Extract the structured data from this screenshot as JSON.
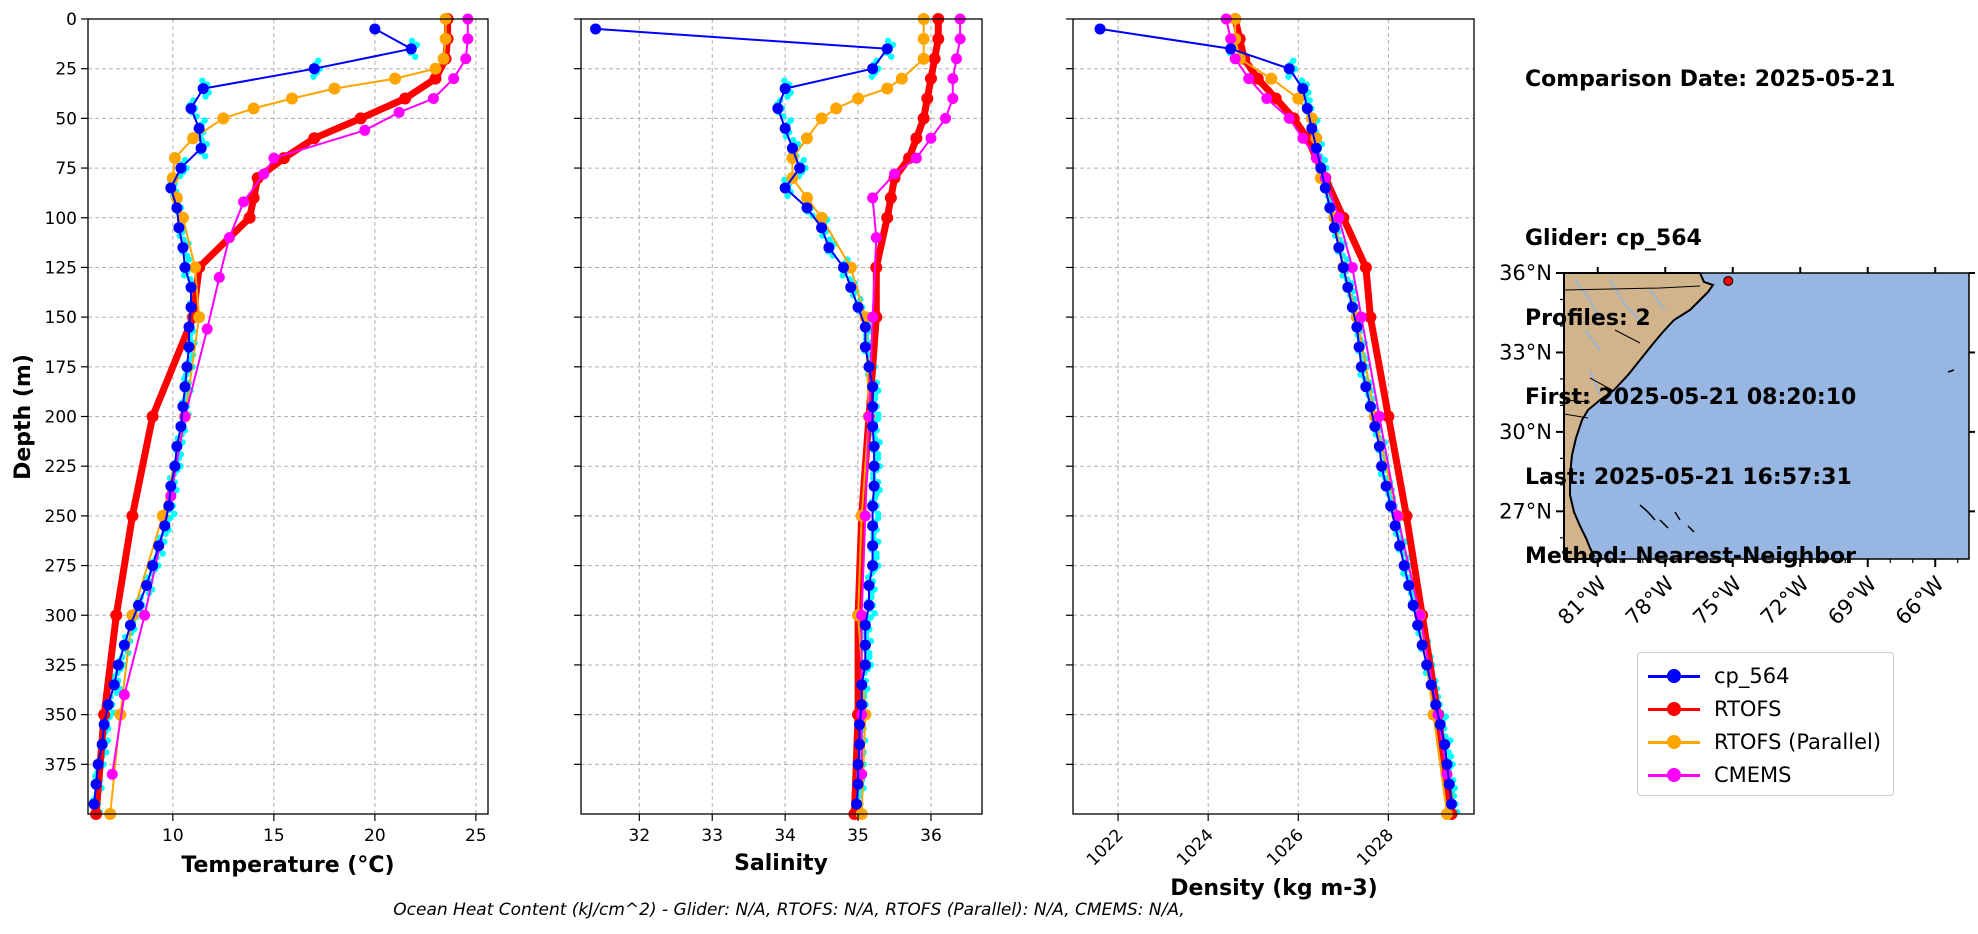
{
  "info": {
    "comparison_date": "Comparison Date: 2025-05-21",
    "glider": "Glider: cp_564",
    "profiles": "Profiles: 2",
    "first": "First: 2025-05-21 08:20:10",
    "last": "Last: 2025-05-21 16:57:31",
    "method": "Method: Nearest-Neighbor"
  },
  "footnote": "Ocean Heat Content (kJ/cm^2) - Glider: N/A,  RTOFS: N/A,  RTOFS (Parallel): N/A,  CMEMS: N/A,",
  "legend": [
    {
      "name": "cp_564",
      "color": "#0000ff"
    },
    {
      "name": "RTOFS",
      "color": "#ff0000"
    },
    {
      "name": "RTOFS (Parallel)",
      "color": "#ffa500"
    },
    {
      "name": "CMEMS",
      "color": "#ff00ff"
    }
  ],
  "colors": {
    "glider_raw": "#00ffff",
    "glider": "#0000ff",
    "rtofs": "#ff0000",
    "rtofs_parallel": "#ffa500",
    "cmems": "#ff00ff",
    "ocean": "#97b6e1",
    "land": "#d2b48c",
    "grid": "#b0b0b0"
  },
  "chart_data": [
    {
      "type": "line",
      "xlabel": "Temperature (°C)",
      "ylabel": "Depth (m)",
      "xlim": [
        5.8,
        25.6
      ],
      "ylim": [
        400,
        0
      ],
      "xticks": [
        10,
        15,
        20,
        25
      ],
      "yticks": [
        0,
        25,
        50,
        75,
        100,
        125,
        150,
        175,
        200,
        225,
        250,
        275,
        300,
        325,
        350,
        375
      ],
      "grid": true,
      "series": [
        {
          "name": "cp_564",
          "depth": [
            5,
            15,
            25,
            35,
            45,
            55,
            65,
            75,
            85,
            95,
            105,
            115,
            125,
            135,
            145,
            155,
            165,
            175,
            185,
            195,
            205,
            215,
            225,
            235,
            245,
            255,
            265,
            275,
            285,
            295,
            305,
            315,
            325,
            335,
            345,
            355,
            365,
            375,
            385,
            395
          ],
          "values": [
            20.0,
            21.8,
            17.0,
            11.5,
            10.9,
            11.3,
            11.4,
            10.4,
            9.9,
            10.2,
            10.3,
            10.5,
            10.6,
            10.9,
            10.9,
            10.8,
            10.8,
            10.7,
            10.6,
            10.5,
            10.4,
            10.2,
            10.1,
            9.9,
            9.8,
            9.6,
            9.3,
            9.0,
            8.7,
            8.3,
            7.9,
            7.6,
            7.3,
            7.1,
            6.8,
            6.6,
            6.5,
            6.3,
            6.2,
            6.1
          ]
        },
        {
          "name": "RTOFS",
          "depth": [
            0,
            10,
            20,
            30,
            40,
            50,
            60,
            70,
            80,
            90,
            100,
            125,
            150,
            200,
            250,
            300,
            350,
            400
          ],
          "values": [
            23.6,
            23.6,
            23.5,
            23.0,
            21.5,
            19.3,
            17.0,
            15.5,
            14.2,
            14.0,
            13.8,
            11.3,
            11.0,
            9.0,
            8.0,
            7.2,
            6.6,
            6.2
          ]
        },
        {
          "name": "RTOFS (Parallel)",
          "depth": [
            0,
            10,
            20,
            25,
            30,
            35,
            40,
            45,
            50,
            60,
            70,
            80,
            90,
            100,
            125,
            150,
            200,
            250,
            300,
            350,
            400
          ],
          "values": [
            23.5,
            23.5,
            23.4,
            23.0,
            21.0,
            18.0,
            15.9,
            14.0,
            12.5,
            11.0,
            10.1,
            10.0,
            10.2,
            10.5,
            11.1,
            11.3,
            10.6,
            9.5,
            8.0,
            7.4,
            6.9
          ]
        },
        {
          "name": "CMEMS",
          "depth": [
            0,
            10,
            20,
            30,
            40,
            47,
            56,
            70,
            78,
            92,
            110,
            130,
            156,
            200,
            240,
            300,
            340,
            380
          ],
          "values": [
            24.6,
            24.6,
            24.5,
            23.9,
            22.9,
            21.2,
            19.5,
            15.0,
            14.5,
            13.5,
            12.8,
            12.3,
            11.7,
            10.6,
            9.9,
            8.6,
            7.6,
            7.0
          ]
        }
      ]
    },
    {
      "type": "line",
      "xlabel": "Salinity",
      "ylim": [
        400,
        0
      ],
      "xlim": [
        31.2,
        36.7
      ],
      "xticks": [
        32,
        33,
        34,
        35,
        36
      ],
      "grid": true,
      "series": [
        {
          "name": "cp_564",
          "depth": [
            5,
            15,
            25,
            35,
            45,
            55,
            65,
            75,
            85,
            95,
            105,
            115,
            125,
            135,
            145,
            155,
            165,
            175,
            185,
            195,
            205,
            215,
            225,
            235,
            245,
            255,
            265,
            275,
            285,
            295,
            305,
            315,
            325,
            335,
            345,
            355,
            365,
            375,
            385,
            395
          ],
          "values": [
            31.4,
            35.4,
            35.2,
            34.0,
            33.9,
            34.0,
            34.1,
            34.2,
            34.0,
            34.3,
            34.5,
            34.6,
            34.8,
            34.9,
            35.0,
            35.1,
            35.1,
            35.15,
            35.2,
            35.2,
            35.2,
            35.22,
            35.22,
            35.22,
            35.2,
            35.2,
            35.2,
            35.2,
            35.15,
            35.15,
            35.1,
            35.1,
            35.1,
            35.05,
            35.05,
            35.02,
            35.02,
            35.0,
            35.0,
            34.98
          ]
        },
        {
          "name": "RTOFS",
          "depth": [
            0,
            10,
            20,
            30,
            40,
            50,
            60,
            70,
            80,
            90,
            100,
            125,
            150,
            200,
            250,
            300,
            350,
            400
          ],
          "values": [
            36.1,
            36.1,
            36.05,
            36.0,
            35.95,
            35.9,
            35.8,
            35.7,
            35.5,
            35.45,
            35.4,
            35.25,
            35.25,
            35.15,
            35.05,
            35.0,
            35.0,
            34.95
          ]
        },
        {
          "name": "RTOFS (Parallel)",
          "depth": [
            0,
            10,
            20,
            30,
            35,
            40,
            45,
            50,
            60,
            70,
            80,
            90,
            100,
            125,
            150,
            200,
            250,
            300,
            350,
            400
          ],
          "values": [
            35.9,
            35.9,
            35.9,
            35.6,
            35.4,
            35.0,
            34.7,
            34.5,
            34.3,
            34.1,
            34.1,
            34.3,
            34.5,
            34.9,
            35.1,
            35.15,
            35.05,
            35.0,
            35.1,
            35.05
          ]
        },
        {
          "name": "CMEMS",
          "depth": [
            0,
            10,
            20,
            30,
            40,
            50,
            60,
            70,
            78,
            90,
            110,
            150,
            200,
            250,
            300,
            350,
            380
          ],
          "values": [
            36.4,
            36.4,
            36.35,
            36.3,
            36.3,
            36.2,
            36.0,
            35.8,
            35.5,
            35.2,
            35.25,
            35.2,
            35.15,
            35.1,
            35.05,
            35.05,
            35.05
          ]
        }
      ]
    },
    {
      "type": "line",
      "xlabel": "Density (kg m-3)",
      "ylim": [
        400,
        0
      ],
      "xlim": [
        1021.0,
        1029.9
      ],
      "xticks": [
        1022,
        1024,
        1026,
        1028
      ],
      "grid": true,
      "series": [
        {
          "name": "cp_564",
          "depth": [
            5,
            15,
            25,
            35,
            45,
            55,
            65,
            75,
            85,
            95,
            105,
            115,
            125,
            135,
            145,
            155,
            165,
            175,
            185,
            195,
            205,
            215,
            225,
            235,
            245,
            255,
            265,
            275,
            285,
            295,
            305,
            315,
            325,
            335,
            345,
            355,
            365,
            375,
            385,
            395
          ],
          "values": [
            1021.6,
            1024.5,
            1025.8,
            1026.1,
            1026.2,
            1026.3,
            1026.4,
            1026.5,
            1026.6,
            1026.7,
            1026.8,
            1026.9,
            1027.0,
            1027.1,
            1027.2,
            1027.3,
            1027.35,
            1027.4,
            1027.5,
            1027.6,
            1027.7,
            1027.8,
            1027.85,
            1027.95,
            1028.05,
            1028.15,
            1028.25,
            1028.35,
            1028.45,
            1028.55,
            1028.65,
            1028.75,
            1028.85,
            1028.95,
            1029.05,
            1029.15,
            1029.25,
            1029.3,
            1029.35,
            1029.4
          ]
        },
        {
          "name": "RTOFS",
          "depth": [
            0,
            10,
            20,
            30,
            40,
            50,
            60,
            80,
            100,
            125,
            150,
            200,
            250,
            300,
            350,
            400
          ],
          "values": [
            1024.6,
            1024.7,
            1024.8,
            1025.1,
            1025.5,
            1025.9,
            1026.2,
            1026.6,
            1027.0,
            1027.5,
            1027.6,
            1028.0,
            1028.4,
            1028.75,
            1029.1,
            1029.4
          ]
        },
        {
          "name": "RTOFS (Parallel)",
          "depth": [
            0,
            10,
            20,
            30,
            40,
            50,
            60,
            80,
            100,
            125,
            150,
            200,
            250,
            300,
            350,
            400
          ],
          "values": [
            1024.6,
            1024.6,
            1024.7,
            1025.4,
            1026.0,
            1026.3,
            1026.4,
            1026.5,
            1026.8,
            1027.0,
            1027.3,
            1027.7,
            1028.2,
            1028.7,
            1029.0,
            1029.3
          ]
        },
        {
          "name": "CMEMS",
          "depth": [
            0,
            10,
            20,
            30,
            40,
            50,
            60,
            70,
            80,
            100,
            125,
            150,
            200,
            250,
            300,
            350,
            380
          ],
          "values": [
            1024.4,
            1024.5,
            1024.6,
            1024.9,
            1025.3,
            1025.8,
            1026.1,
            1026.4,
            1026.6,
            1026.9,
            1027.2,
            1027.4,
            1027.8,
            1028.2,
            1028.7,
            1029.1,
            1029.3
          ]
        }
      ]
    },
    {
      "type": "map",
      "lon_range": [
        -82.5,
        -64.5
      ],
      "lat_range": [
        25.2,
        36.0
      ],
      "lon_ticks": [
        "81°W",
        "78°W",
        "75°W",
        "72°W",
        "69°W",
        "66°W"
      ],
      "lat_ticks": [
        "36°N",
        "33°N",
        "30°N",
        "27°N"
      ],
      "glider_position": {
        "lon": -75.2,
        "lat": 35.7
      }
    }
  ]
}
